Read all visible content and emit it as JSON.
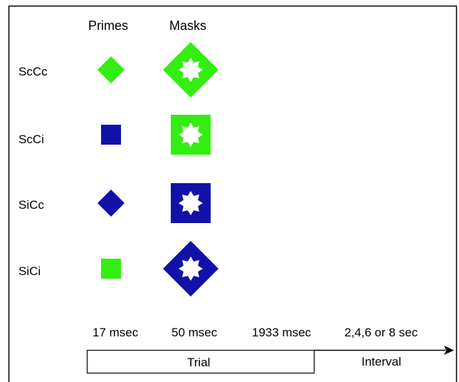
{
  "columns": {
    "primes": "Primes",
    "masks": "Masks"
  },
  "rows": [
    {
      "label": "ScCc",
      "prime_shape": "diamond",
      "prime_color": "#33ee11",
      "mask_shape": "diamond",
      "mask_color": "#33ee11"
    },
    {
      "label": "ScCi",
      "prime_shape": "square",
      "prime_color": "#1111aa",
      "mask_shape": "square",
      "mask_color": "#33ee11"
    },
    {
      "label": "SiCc",
      "prime_shape": "diamond",
      "prime_color": "#1111aa",
      "mask_shape": "square",
      "mask_color": "#1111aa"
    },
    {
      "label": "SiCi",
      "prime_shape": "square",
      "prime_color": "#33ee11",
      "mask_shape": "diamond",
      "mask_color": "#1111aa"
    }
  ],
  "timeline": {
    "durations": [
      "17 msec",
      "50 msec",
      "1933 msec",
      "2,4,6 or 8 sec"
    ],
    "trial_label": "Trial",
    "interval_label": "Interval"
  },
  "colors": {
    "green": "#33ee11",
    "blue": "#1111aa"
  }
}
